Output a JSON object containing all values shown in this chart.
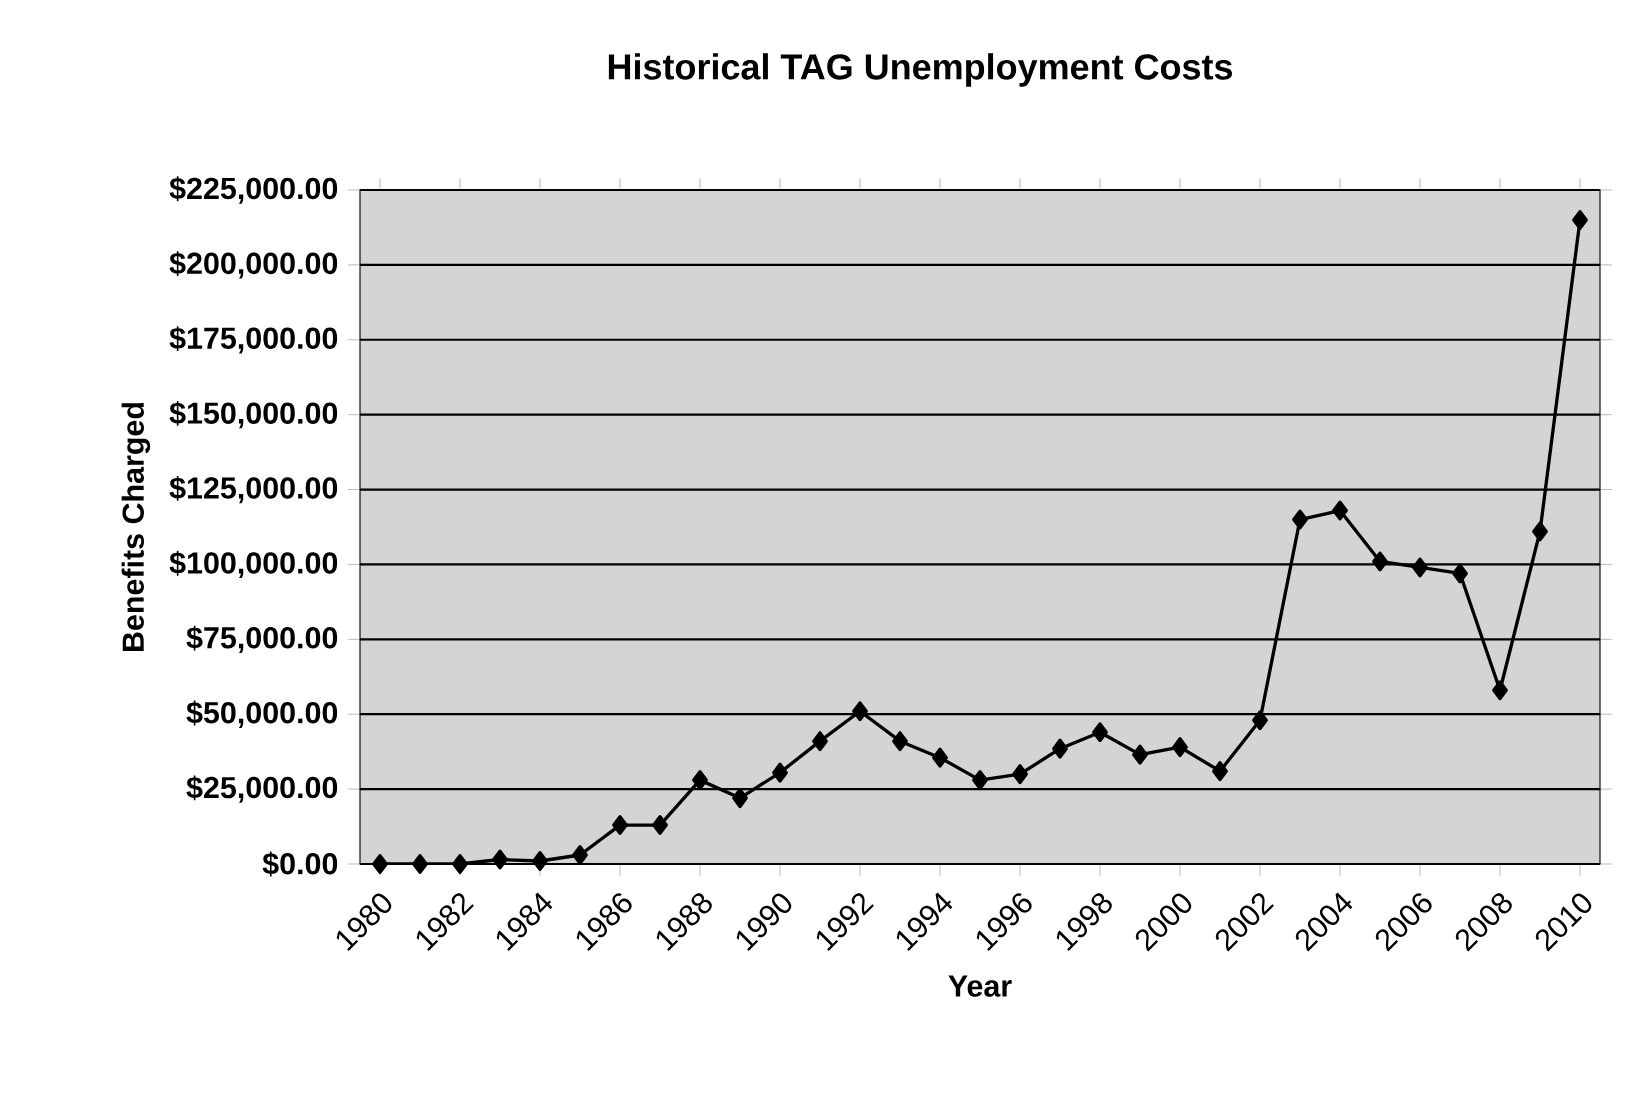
{
  "chart_data": {
    "type": "line",
    "title": "Historical TAG Unemployment Costs",
    "xlabel": "Year",
    "ylabel": "Benefits Charged",
    "categories": [
      "1980",
      null,
      "1982",
      null,
      "1984",
      null,
      "1986",
      null,
      "1988",
      null,
      "1990",
      null,
      "1992",
      null,
      "1994",
      null,
      "1996",
      null,
      "1998",
      null,
      "2000",
      null,
      "2002",
      null,
      "2004",
      null,
      "2006",
      null,
      "2008",
      null,
      "2010"
    ],
    "series": [
      {
        "color": "#000000",
        "values": [
          0,
          0,
          0,
          1500,
          1000,
          3000,
          13000,
          13000,
          28000,
          22000,
          30500,
          41000,
          51000,
          41000,
          35500,
          28000,
          30000,
          38500,
          44000,
          36500,
          39000,
          31000,
          48000,
          115000,
          118000,
          101000,
          99000,
          97000,
          58000,
          111000,
          215000
        ]
      }
    ],
    "ylim": [
      0,
      225000
    ],
    "yticks": [
      {
        "value": 0,
        "label": "$0.00"
      },
      {
        "value": 25000,
        "label": "$25,000.00"
      },
      {
        "value": 50000,
        "label": "$50,000.00"
      },
      {
        "value": 75000,
        "label": "$75,000.00"
      },
      {
        "value": 100000,
        "label": "$100,000.00"
      },
      {
        "value": 125000,
        "label": "$125,000.00"
      },
      {
        "value": 150000,
        "label": "$150,000.00"
      },
      {
        "value": 175000,
        "label": "$175,000.00"
      },
      {
        "value": 200000,
        "label": "$200,000.00"
      },
      {
        "value": 225000,
        "label": "$225,000.00"
      }
    ],
    "grid": "y",
    "marker": "diamond",
    "line_style": "solid"
  }
}
